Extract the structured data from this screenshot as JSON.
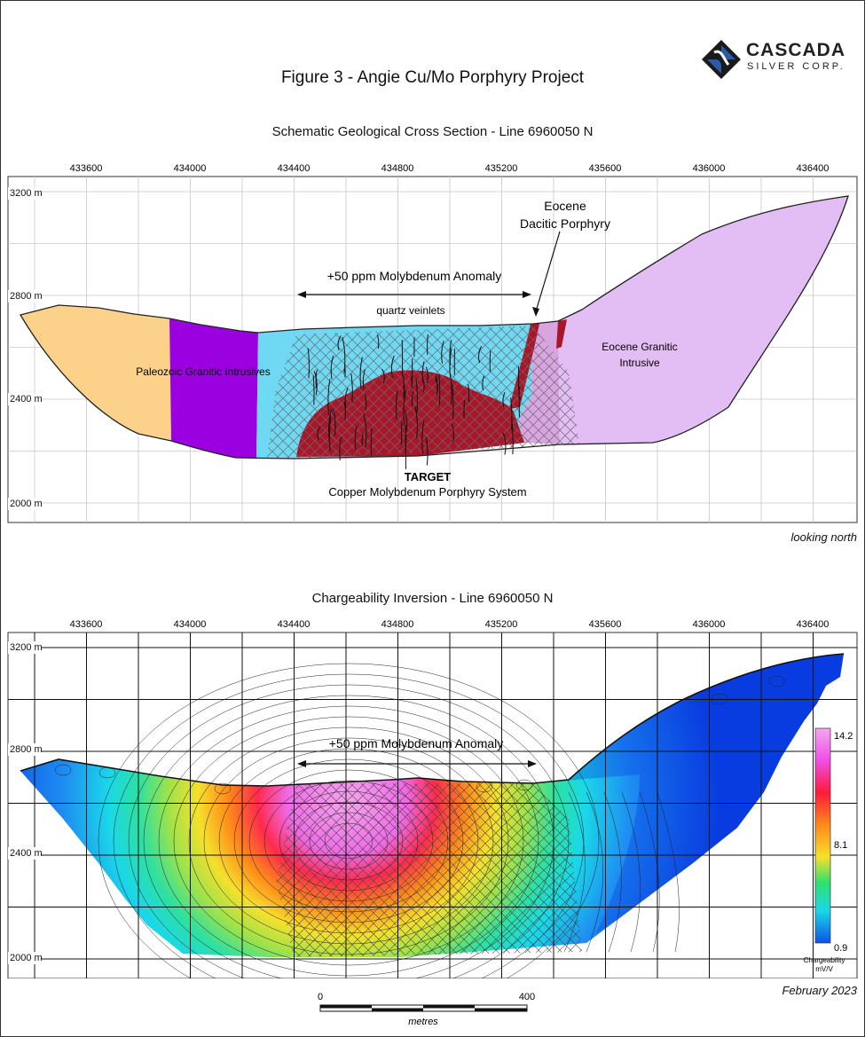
{
  "logo": {
    "word1": "CASCADA",
    "word2": "SILVER CORP."
  },
  "title": "Figure 3 - Angie Cu/Mo Porphyry Project",
  "section1": {
    "subtitle": "Schematic Geological Cross Section - Line 6960050 N",
    "x_ticks": [
      "433600",
      "434000",
      "434400",
      "434800",
      "435200",
      "435600",
      "436000",
      "436400"
    ],
    "elev_labels": [
      "3200 m",
      "2800 m",
      "2400 m",
      "2000 m"
    ],
    "labels": {
      "dacitic_1": "Eocene",
      "dacitic_2": "Dacitic Porphyry",
      "anomaly": "+50 ppm Molybdenum Anomaly",
      "veinlets": "quartz veinlets",
      "paleozoic": "Paleozoic Granitic Intrusives",
      "eocene_gran_1": "Eocene Granitic",
      "eocene_gran_2": "Intrusive",
      "target": "TARGET",
      "target_sub": "Copper Molybdenum Porphyry System"
    },
    "note": "looking north",
    "colors": {
      "orange": "#fcd28a",
      "purple": "#9b00e0",
      "cyan": "#6fd8f3",
      "red": "#a8162a",
      "lilac": "#e3bef5",
      "rose": "#d8a5e0"
    }
  },
  "section2": {
    "subtitle": "Chargeability Inversion - Line 6960050 N",
    "x_ticks": [
      "433600",
      "434000",
      "434400",
      "434800",
      "435200",
      "435600",
      "436000",
      "436400"
    ],
    "elev_labels": [
      "3200 m",
      "2800 m",
      "2400 m",
      "2000 m"
    ],
    "anomaly": "+50 ppm Molybdenum Anomaly",
    "colorbar": {
      "max": "14.2",
      "mid": "8.1",
      "min": "0.9",
      "label1": "Chargeability",
      "label2": "mV/V"
    },
    "date": "February 2023"
  },
  "scale": {
    "start": "0",
    "end": "400",
    "unit": "metres"
  }
}
